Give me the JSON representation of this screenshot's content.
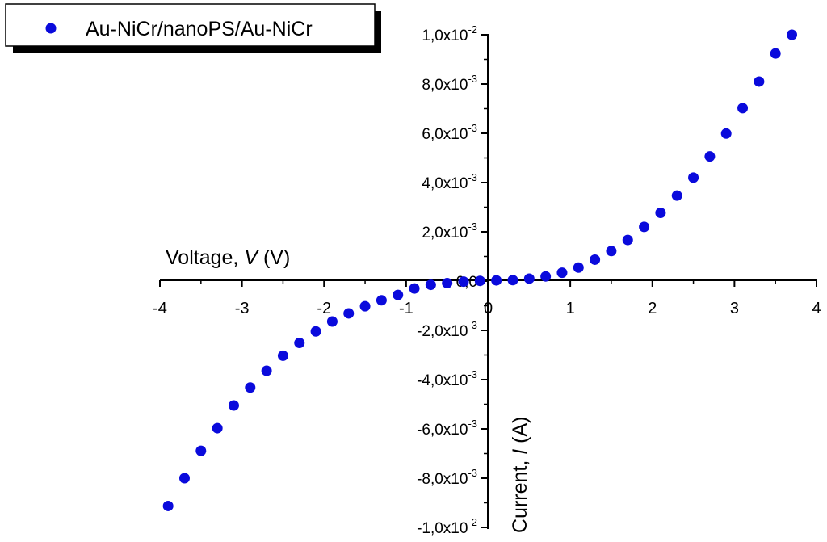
{
  "chart_data": {
    "type": "scatter",
    "title": "",
    "xlabel": {
      "prefix": "Voltage, ",
      "symbol": "V",
      "suffix": " (V)"
    },
    "ylabel": {
      "prefix": "Current, ",
      "symbol": "I",
      "suffix": " (A)"
    },
    "xlim": [
      -4,
      4
    ],
    "ylim": [
      -0.01,
      0.01
    ],
    "x_ticks": [
      -4,
      -3,
      -2,
      -1,
      0,
      1,
      2,
      3,
      4
    ],
    "x_tick_labels": [
      "-4",
      "-3",
      "-2",
      "-1",
      "0",
      "1",
      "2",
      "3",
      "4"
    ],
    "y_ticks": [
      {
        "value": 0.01,
        "mantissa": "1,0x10",
        "exponent": "-2"
      },
      {
        "value": 0.008,
        "mantissa": "8,0x10",
        "exponent": "-3"
      },
      {
        "value": 0.006,
        "mantissa": "6,0x10",
        "exponent": "-3"
      },
      {
        "value": 0.004,
        "mantissa": "4,0x10",
        "exponent": "-3"
      },
      {
        "value": 0.002,
        "mantissa": "2,0x10",
        "exponent": "-3"
      },
      {
        "value": 0,
        "mantissa": "0,0",
        "exponent": ""
      },
      {
        "value": -0.002,
        "mantissa": "-2,0x10",
        "exponent": "-3"
      },
      {
        "value": -0.004,
        "mantissa": "-4,0x10",
        "exponent": "-3"
      },
      {
        "value": -0.006,
        "mantissa": "-6,0x10",
        "exponent": "-3"
      },
      {
        "value": -0.008,
        "mantissa": "-8,0x10",
        "exponent": "-3"
      },
      {
        "value": -0.01,
        "mantissa": "-1,0x10",
        "exponent": "-2"
      }
    ],
    "legend": {
      "position": "top-left"
    },
    "series": [
      {
        "name": "Au-NiCr/nanoPS/Au-NiCr",
        "color": "#0a0adc",
        "x": [
          -3.9,
          -3.7,
          -3.5,
          -3.3,
          -3.1,
          -2.9,
          -2.7,
          -2.5,
          -2.3,
          -2.1,
          -1.9,
          -1.7,
          -1.5,
          -1.3,
          -1.1,
          -0.9,
          -0.7,
          -0.5,
          -0.3,
          -0.1,
          0.1,
          0.3,
          0.5,
          0.7,
          0.9,
          1.1,
          1.3,
          1.5,
          1.7,
          1.9,
          2.1,
          2.3,
          2.5,
          2.7,
          2.9,
          3.1,
          3.3,
          3.5,
          3.7
        ],
        "y": [
          -0.00913,
          -0.008,
          -0.00689,
          -0.00597,
          -0.00505,
          -0.00432,
          -0.00364,
          -0.00303,
          -0.00251,
          -0.00204,
          -0.00164,
          -0.00131,
          -0.00102,
          -0.00078,
          -0.00056,
          -0.0003,
          -0.00015,
          -8e-05,
          -2e-05,
          1e-05,
          3e-05,
          4e-05,
          0.0001,
          0.00019,
          0.00034,
          0.00055,
          0.00087,
          0.00122,
          0.00167,
          0.0022,
          0.00277,
          0.00347,
          0.0042,
          0.00506,
          0.00599,
          0.00702,
          0.0081,
          0.00924,
          0.01
        ]
      }
    ]
  }
}
